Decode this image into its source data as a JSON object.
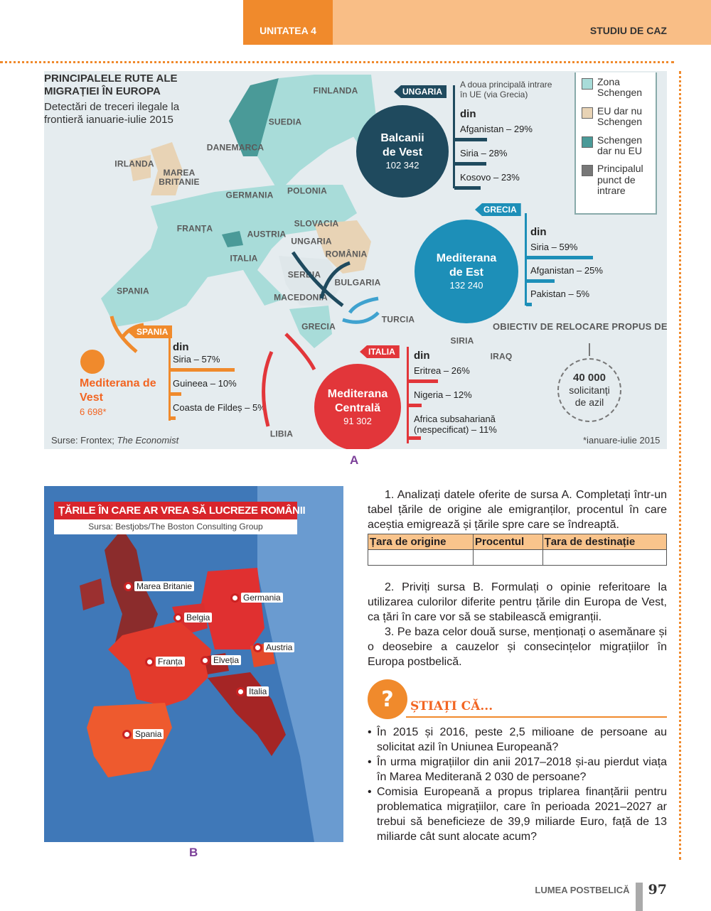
{
  "header": {
    "unit": "UNITATEA 4",
    "section": "STUDIU DE CAZ"
  },
  "mapA": {
    "title": "PRINCIPALELE RUTE ALE MIGRAȚIEI ÎN EUROPA",
    "subtitle": "Detectări de treceri ilegale la frontieră ianuarie-iulie 2015",
    "countries": [
      "FINLANDA",
      "SUEDIA",
      "DANEMARCA",
      "IRLANDA",
      "MAREA BRITANIE",
      "GERMANIA",
      "POLONIA",
      "FRANȚA",
      "AUSTRIA",
      "SLOVACIA",
      "UNGARIA",
      "ROMÂNIA",
      "ITALIA",
      "SERBIA",
      "BULGARIA",
      "MACEDONIA",
      "SPANIA",
      "GRECIA",
      "TURCIA",
      "SIRIA",
      "IRAQ",
      "LIBIA"
    ],
    "routes": {
      "balkans": {
        "name": "Balcanii de Vest",
        "count": "102 342",
        "entry": "UNGARIA",
        "note": "A doua principală intrare în UE (via Grecia)",
        "from": "din",
        "items": [
          {
            "label": "Afganistan – 29%",
            "pct": 29
          },
          {
            "label": "Siria – 28%",
            "pct": 28
          },
          {
            "label": "Kosovo – 23%",
            "pct": 23
          }
        ],
        "color": "#1f4a5e"
      },
      "east": {
        "name": "Mediterana de Est",
        "count": "132 240",
        "entry": "GRECIA",
        "from": "din",
        "items": [
          {
            "label": "Siria – 59%",
            "pct": 59
          },
          {
            "label": "Afganistan – 25%",
            "pct": 25
          },
          {
            "label": "Pakistan – 5%",
            "pct": 5
          }
        ],
        "color": "#1d8fb8"
      },
      "central": {
        "name": "Mediterana Centrală",
        "count": "91 302",
        "entry": "ITALIA",
        "from": "din",
        "items": [
          {
            "label": "Eritrea – 26%",
            "pct": 26
          },
          {
            "label": "Nigeria – 12%",
            "pct": 12
          },
          {
            "label": "Africa subsahariană (nespecificat) – 11%",
            "pct": 11
          }
        ],
        "color": "#e2363a"
      },
      "west": {
        "name": "Mediterana de Vest",
        "count": "6 698*",
        "entry": "SPANIA",
        "from": "din",
        "items": [
          {
            "label": "Siria – 57%",
            "pct": 57
          },
          {
            "label": "Guineea – 10%",
            "pct": 10
          },
          {
            "label": "Coasta de Fildeș – 5%",
            "pct": 5
          }
        ],
        "color": "#f08a2c"
      }
    },
    "legend": [
      {
        "label": "Zona Schengen",
        "color": "#a8dcd9"
      },
      {
        "label": "EU dar nu Schengen",
        "color": "#e8d3b5"
      },
      {
        "label": "Schengen dar nu EU",
        "color": "#4a9a98"
      },
      {
        "label": "Principalul punct de intrare",
        "color": "#777777"
      }
    ],
    "relocation": {
      "title": "OBIECTIV DE RELOCARE PROPUS DE EU",
      "value": "40 000",
      "unit": "solicitanți de azil"
    },
    "source_prefix": "Surse: Frontex; ",
    "source_italic": "The Economist",
    "footnote": "*ianuare-iulie 2015",
    "caption": "A"
  },
  "mapB": {
    "title": "ȚĂRILE ÎN CARE AR VREA SĂ LUCREZE ROMÂNII",
    "source": "Sursa: Bestjobs/The Boston Consulting Group",
    "countries": [
      "Marea Britanie",
      "Germania",
      "Belgia",
      "Austria",
      "Franța",
      "Elveția",
      "Italia",
      "Spania"
    ],
    "caption": "B"
  },
  "questions": {
    "q1": "1. Analizați datele oferite de sursa A. Completați într-un tabel țările de origine ale emigranților, procentul în care aceștia emigrează și țările spre care se îndreaptă.",
    "table_headers": [
      "Țara de origine",
      "Procentul",
      "Țara de destinație"
    ],
    "q2": "2. Priviți sursa B. Formulați o opinie referitoare la utilizarea culorilor diferite pentru țările din Europa de Vest, ca țări în care vor să se stabilească emigranții.",
    "q3": "3. Pe baza celor două surse, menționați o asemănare și o deosebire a cauzelor și consecințelor migrațiilor în Europa postbelică."
  },
  "didyouknow": {
    "title": "ȘTIAȚI CĂ...",
    "items": [
      "În 2015 și 2016, peste 2,5 milioane de persoane au solicitat azil în Uniunea Europeană?",
      "În urma migrațiilor din anii 2017–2018 și-au pierdut viața în Marea Mediterană 2 030 de persoane?",
      "Comisia Europeană a propus triplarea finanțării pentru problematica migrațiilor, care în perioada 2021–2027 ar trebui să beneficieze de 39,9 miliarde Euro, față de 13 miliarde cât sunt alocate acum?"
    ]
  },
  "footer": {
    "book": "LUMEA POSTBELICĂ",
    "page": "97"
  }
}
